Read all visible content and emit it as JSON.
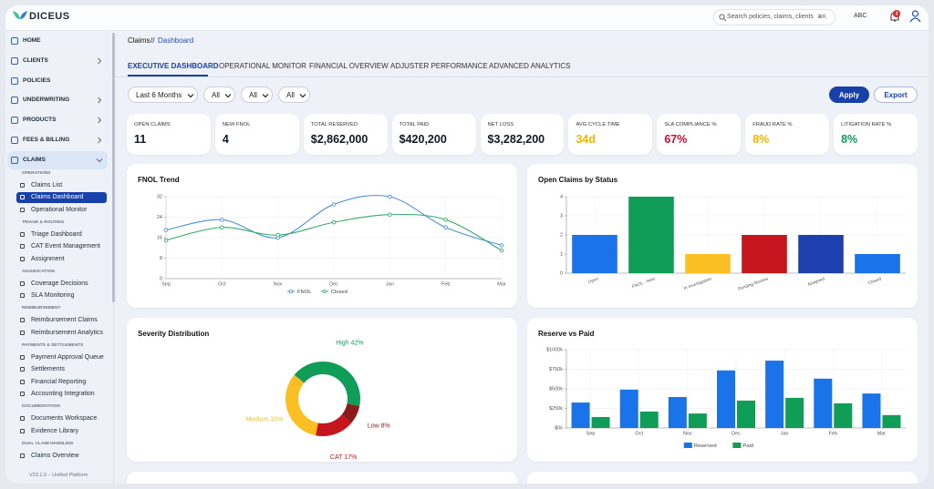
{
  "brand": "DICEUS",
  "header": {
    "search_placeholder": "Search policies, claims, clients",
    "shortcut": "⌘K",
    "user": "ABC",
    "notifications": "3"
  },
  "sidebar": {
    "nav": [
      {
        "label": "HOME"
      },
      {
        "label": "CLIENTS",
        "expand": "right"
      },
      {
        "label": "POLICIES"
      },
      {
        "label": "UNDERWRITING",
        "expand": "right"
      },
      {
        "label": "PRODUCTS",
        "expand": "right"
      },
      {
        "label": "FEES & BILLING",
        "expand": "right"
      },
      {
        "label": "CLAIMS",
        "expand": "down",
        "active": true
      }
    ],
    "sections": [
      {
        "title": "OPERATIONS",
        "items": [
          {
            "label": "Claims List"
          },
          {
            "label": "Claims Dashboard",
            "active": true
          },
          {
            "label": "Operational Monitor"
          }
        ]
      },
      {
        "title": "TRIAGE & ROUTING",
        "items": [
          {
            "label": "Triage Dashboard"
          },
          {
            "label": "CAT Event Management"
          },
          {
            "label": "Assignment"
          }
        ]
      },
      {
        "title": "ADJUDICATION",
        "items": [
          {
            "label": "Coverage Decisions"
          },
          {
            "label": "SLA Monitoring"
          }
        ]
      },
      {
        "title": "REIMBURSEMENT",
        "items": [
          {
            "label": "Reimbursement Claims"
          },
          {
            "label": "Reimbursement Analytics"
          }
        ]
      },
      {
        "title": "PAYMENTS & SETTLEMENTS",
        "items": [
          {
            "label": "Payment Approval Queue"
          },
          {
            "label": "Settlements"
          },
          {
            "label": "Financial Reporting"
          },
          {
            "label": "Accounting Integration"
          }
        ]
      },
      {
        "title": "DOCUMENTATION",
        "items": [
          {
            "label": "Documents Workspace"
          },
          {
            "label": "Evidence Library"
          }
        ]
      },
      {
        "title": "DUAL CLAIM HANDLING",
        "items": [
          {
            "label": "Claims Overview"
          }
        ]
      }
    ],
    "version": "V23.1.0 – Unified Platform"
  },
  "breadcrumb": {
    "parent": "Claims",
    "separator": "//",
    "current": "Dashboard"
  },
  "tabs": [
    {
      "label": "EXECUTIVE DASHBOARD",
      "active": true
    },
    {
      "label": "OPERATIONAL MONITOR"
    },
    {
      "label": "FINANCIAL OVERVIEW"
    },
    {
      "label": "ADJUSTER PERFORMANCE"
    },
    {
      "label": "ADVANCED ANALYTICS"
    }
  ],
  "filters": [
    "Last 6 Months",
    "All",
    "All",
    "All"
  ],
  "actions": {
    "apply": "Apply",
    "export": "Export"
  },
  "kpis": [
    {
      "label": "OPEN CLAIMS",
      "value": "11",
      "color": "#111827"
    },
    {
      "label": "NEW FNOL",
      "value": "4",
      "color": "#111827"
    },
    {
      "label": "TOTAL RESERVED",
      "value": "$2,862,000",
      "color": "#111827"
    },
    {
      "label": "TOTAL PAID",
      "value": "$420,200",
      "color": "#111827"
    },
    {
      "label": "NET LOSS",
      "value": "$3,282,200",
      "color": "#111827"
    },
    {
      "label": "AVG CYCLE TIME",
      "value": "34d",
      "color": "#f5b400"
    },
    {
      "label": "SLA COMPLIANCE %",
      "value": "67%",
      "color": "#c8102e"
    },
    {
      "label": "FRAUD RATE %",
      "value": "8%",
      "color": "#f5b400"
    },
    {
      "label": "LITIGATION RATE %",
      "value": "8%",
      "color": "#0f9d58"
    }
  ],
  "chart_data": [
    {
      "type": "line",
      "title": "FNOL Trend",
      "categories": [
        "Sep",
        "Oct",
        "Nov",
        "Dec",
        "Jan",
        "Feb",
        "Mar"
      ],
      "series": [
        {
          "name": "FNOL",
          "color": "#4a90d9",
          "values": [
            19,
            23,
            16,
            29,
            32,
            20,
            13
          ]
        },
        {
          "name": "Closed",
          "color": "#3aa86b",
          "values": [
            15,
            20,
            17,
            22,
            25,
            23,
            11
          ]
        }
      ],
      "ylim": [
        0,
        32
      ],
      "yticks": [
        0,
        8,
        16,
        24,
        32
      ],
      "grid": true
    },
    {
      "type": "bar",
      "title": "Open Claims by Status",
      "categories": [
        "Open",
        "FNOL - New",
        "In Investigation",
        "Pending Review",
        "Assigned",
        "Closed"
      ],
      "values": [
        2,
        4,
        1,
        2,
        2,
        1
      ],
      "colors": [
        "#1a73e8",
        "#0f9d58",
        "#fbbf24",
        "#c5161d",
        "#1e40af",
        "#1a73e8"
      ],
      "ylim": [
        0,
        4
      ],
      "yticks": [
        0,
        1,
        2,
        3,
        4
      ],
      "grid": true
    },
    {
      "type": "pie",
      "title": "Severity Distribution",
      "donut": true,
      "categories": [
        "High",
        "Low",
        "CAT",
        "Medium"
      ],
      "values": [
        42,
        8,
        17,
        33
      ],
      "value_labels": [
        "42%",
        "8%",
        "17%",
        "33%"
      ],
      "colors": [
        "#0f9d58",
        "#8b1a1a",
        "#c5161d",
        "#fbbf24"
      ]
    },
    {
      "type": "bar",
      "title": "Reserve vs Paid",
      "categories": [
        "Sep",
        "Oct",
        "Nov",
        "Dec",
        "Jan",
        "Feb",
        "Mar"
      ],
      "series": [
        {
          "name": "Reserved",
          "color": "#1a73e8",
          "values": [
            325000,
            490000,
            395000,
            735000,
            860000,
            630000,
            440000
          ]
        },
        {
          "name": "Paid",
          "color": "#0f9d58",
          "values": [
            140000,
            210000,
            185000,
            350000,
            385000,
            315000,
            165000
          ]
        }
      ],
      "ylim": [
        0,
        1000000
      ],
      "yticks": [
        {
          "value": 0,
          "label": "$0k"
        },
        {
          "value": 250000,
          "label": "$250k"
        },
        {
          "value": 500000,
          "label": "$500k"
        },
        {
          "value": 750000,
          "label": "$750k"
        },
        {
          "value": 1000000,
          "label": "$1000k"
        }
      ],
      "grid": true
    }
  ]
}
